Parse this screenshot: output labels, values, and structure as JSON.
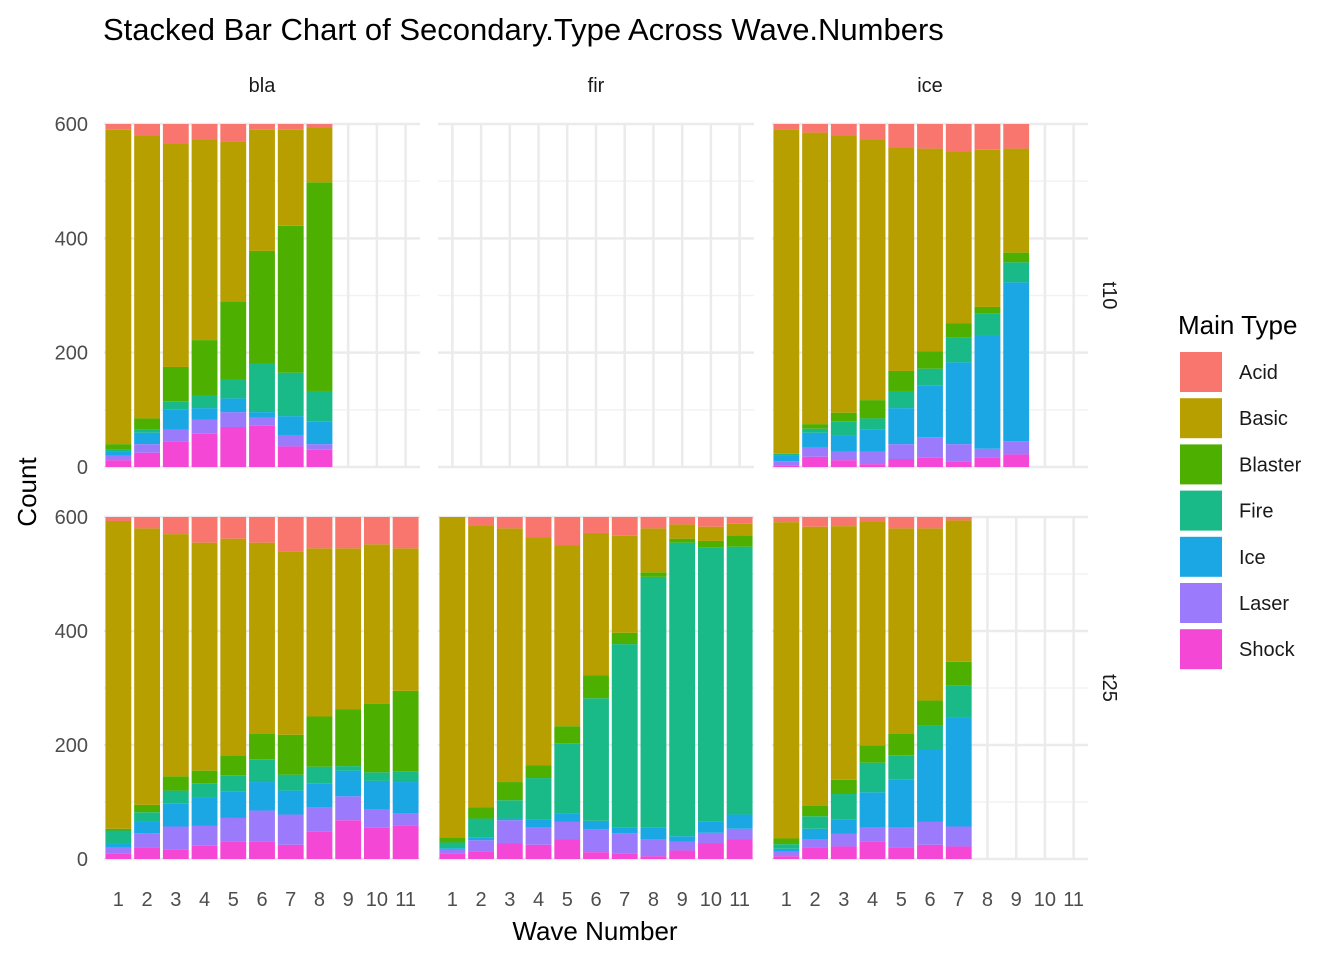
{
  "chart_data": {
    "type": "bar",
    "stacked": true,
    "title": "Stacked Bar Chart of Secondary.Type Across Wave.Numbers",
    "xlabel": "Wave Number",
    "ylabel": "Count",
    "ylim": [
      0,
      600
    ],
    "y_ticks": [
      0,
      200,
      400,
      600
    ],
    "x_ticks": [
      "1",
      "2",
      "3",
      "4",
      "5",
      "6",
      "7",
      "8",
      "9",
      "10",
      "11"
    ],
    "grid": true,
    "facet_columns": [
      "bla",
      "fir",
      "ice"
    ],
    "facet_rows": [
      "t10",
      "t25"
    ],
    "legend": {
      "title": "Main Type",
      "placement": "right",
      "entries": [
        {
          "name": "Acid",
          "color": "#F8766D"
        },
        {
          "name": "Basic",
          "color": "#B79F00"
        },
        {
          "name": "Blaster",
          "color": "#4DAF00"
        },
        {
          "name": "Fire",
          "color": "#1ABA88"
        },
        {
          "name": "Ice",
          "color": "#1AA7E3"
        },
        {
          "name": "Laser",
          "color": "#9B7BFB"
        },
        {
          "name": "Shock",
          "color": "#F447D6"
        }
      ]
    },
    "stack_order": [
      "Shock",
      "Laser",
      "Ice",
      "Fire",
      "Blaster",
      "Basic",
      "Acid"
    ],
    "panels": [
      {
        "col": "bla",
        "row": "t10",
        "bars": [
          {
            "wave": 1,
            "Shock": 12,
            "Laser": 8,
            "Ice": 7,
            "Fire": 3,
            "Blaster": 10,
            "Basic": 550,
            "Acid": 10
          },
          {
            "wave": 2,
            "Shock": 25,
            "Laser": 15,
            "Ice": 20,
            "Fire": 5,
            "Blaster": 20,
            "Basic": 495,
            "Acid": 20
          },
          {
            "wave": 3,
            "Shock": 45,
            "Laser": 20,
            "Ice": 35,
            "Fire": 15,
            "Blaster": 60,
            "Basic": 390,
            "Acid": 35
          },
          {
            "wave": 4,
            "Shock": 58,
            "Laser": 25,
            "Ice": 20,
            "Fire": 22,
            "Blaster": 97,
            "Basic": 350,
            "Acid": 28
          },
          {
            "wave": 5,
            "Shock": 70,
            "Laser": 26,
            "Ice": 24,
            "Fire": 33,
            "Blaster": 137,
            "Basic": 280,
            "Acid": 30
          },
          {
            "wave": 6,
            "Shock": 72,
            "Laser": 14,
            "Ice": 10,
            "Fire": 85,
            "Blaster": 197,
            "Basic": 212,
            "Acid": 10
          },
          {
            "wave": 7,
            "Shock": 36,
            "Laser": 20,
            "Ice": 33,
            "Fire": 76,
            "Blaster": 257,
            "Basic": 168,
            "Acid": 10
          },
          {
            "wave": 8,
            "Shock": 30,
            "Laser": 10,
            "Ice": 40,
            "Fire": 53,
            "Blaster": 365,
            "Basic": 95,
            "Acid": 7
          }
        ]
      },
      {
        "col": "fir",
        "row": "t10",
        "bars": []
      },
      {
        "col": "ice",
        "row": "t10",
        "bars": [
          {
            "wave": 1,
            "Shock": 3,
            "Laser": 7,
            "Ice": 10,
            "Fire": 3,
            "Blaster": 0,
            "Basic": 568,
            "Acid": 9
          },
          {
            "wave": 2,
            "Shock": 18,
            "Laser": 17,
            "Ice": 25,
            "Fire": 7,
            "Blaster": 8,
            "Basic": 510,
            "Acid": 15
          },
          {
            "wave": 3,
            "Shock": 12,
            "Laser": 15,
            "Ice": 28,
            "Fire": 25,
            "Blaster": 15,
            "Basic": 485,
            "Acid": 20
          },
          {
            "wave": 4,
            "Shock": 5,
            "Laser": 22,
            "Ice": 38,
            "Fire": 20,
            "Blaster": 32,
            "Basic": 455,
            "Acid": 28
          },
          {
            "wave": 5,
            "Shock": 14,
            "Laser": 26,
            "Ice": 63,
            "Fire": 30,
            "Blaster": 35,
            "Basic": 390,
            "Acid": 42
          },
          {
            "wave": 6,
            "Shock": 16,
            "Laser": 36,
            "Ice": 90,
            "Fire": 30,
            "Blaster": 30,
            "Basic": 355,
            "Acid": 43
          },
          {
            "wave": 7,
            "Shock": 10,
            "Laser": 30,
            "Ice": 143,
            "Fire": 43,
            "Blaster": 25,
            "Basic": 300,
            "Acid": 49
          },
          {
            "wave": 8,
            "Shock": 17,
            "Laser": 15,
            "Ice": 198,
            "Fire": 38,
            "Blaster": 12,
            "Basic": 275,
            "Acid": 45
          },
          {
            "wave": 9,
            "Shock": 22,
            "Laser": 23,
            "Ice": 278,
            "Fire": 35,
            "Blaster": 17,
            "Basic": 182,
            "Acid": 43
          }
        ]
      },
      {
        "col": "bla",
        "row": "t25",
        "bars": [
          {
            "wave": 1,
            "Shock": 10,
            "Laser": 10,
            "Ice": 8,
            "Fire": 22,
            "Blaster": 3,
            "Basic": 540,
            "Acid": 7
          },
          {
            "wave": 2,
            "Shock": 20,
            "Laser": 25,
            "Ice": 20,
            "Fire": 17,
            "Blaster": 13,
            "Basic": 485,
            "Acid": 20
          },
          {
            "wave": 3,
            "Shock": 17,
            "Laser": 40,
            "Ice": 40,
            "Fire": 23,
            "Blaster": 25,
            "Basic": 425,
            "Acid": 30
          },
          {
            "wave": 4,
            "Shock": 23,
            "Laser": 35,
            "Ice": 50,
            "Fire": 25,
            "Blaster": 22,
            "Basic": 400,
            "Acid": 45
          },
          {
            "wave": 5,
            "Shock": 30,
            "Laser": 42,
            "Ice": 47,
            "Fire": 28,
            "Blaster": 35,
            "Basic": 380,
            "Acid": 38
          },
          {
            "wave": 6,
            "Shock": 30,
            "Laser": 55,
            "Ice": 50,
            "Fire": 40,
            "Blaster": 45,
            "Basic": 335,
            "Acid": 45
          },
          {
            "wave": 7,
            "Shock": 25,
            "Laser": 53,
            "Ice": 42,
            "Fire": 28,
            "Blaster": 70,
            "Basic": 322,
            "Acid": 60
          },
          {
            "wave": 8,
            "Shock": 48,
            "Laser": 42,
            "Ice": 42,
            "Fire": 30,
            "Blaster": 88,
            "Basic": 295,
            "Acid": 55
          },
          {
            "wave": 9,
            "Shock": 68,
            "Laser": 42,
            "Ice": 45,
            "Fire": 8,
            "Blaster": 100,
            "Basic": 282,
            "Acid": 55
          },
          {
            "wave": 10,
            "Shock": 55,
            "Laser": 32,
            "Ice": 50,
            "Fire": 15,
            "Blaster": 120,
            "Basic": 280,
            "Acid": 48
          },
          {
            "wave": 11,
            "Shock": 58,
            "Laser": 22,
            "Ice": 55,
            "Fire": 18,
            "Blaster": 142,
            "Basic": 250,
            "Acid": 55
          }
        ]
      },
      {
        "col": "fir",
        "row": "t25",
        "bars": [
          {
            "wave": 1,
            "Shock": 10,
            "Laser": 6,
            "Ice": 3,
            "Fire": 10,
            "Blaster": 9,
            "Basic": 562,
            "Acid": 0
          },
          {
            "wave": 2,
            "Shock": 13,
            "Laser": 20,
            "Ice": 5,
            "Fire": 33,
            "Blaster": 20,
            "Basic": 494,
            "Acid": 15
          },
          {
            "wave": 3,
            "Shock": 28,
            "Laser": 40,
            "Ice": 3,
            "Fire": 32,
            "Blaster": 32,
            "Basic": 445,
            "Acid": 20
          },
          {
            "wave": 4,
            "Shock": 25,
            "Laser": 30,
            "Ice": 15,
            "Fire": 72,
            "Blaster": 22,
            "Basic": 400,
            "Acid": 36
          },
          {
            "wave": 5,
            "Shock": 35,
            "Laser": 30,
            "Ice": 15,
            "Fire": 123,
            "Blaster": 30,
            "Basic": 317,
            "Acid": 50
          },
          {
            "wave": 6,
            "Shock": 12,
            "Laser": 40,
            "Ice": 15,
            "Fire": 215,
            "Blaster": 40,
            "Basic": 250,
            "Acid": 28
          },
          {
            "wave": 7,
            "Shock": 10,
            "Laser": 35,
            "Ice": 10,
            "Fire": 322,
            "Blaster": 20,
            "Basic": 170,
            "Acid": 33
          },
          {
            "wave": 8,
            "Shock": 5,
            "Laser": 30,
            "Ice": 20,
            "Fire": 440,
            "Blaster": 8,
            "Basic": 77,
            "Acid": 20
          },
          {
            "wave": 9,
            "Shock": 15,
            "Laser": 15,
            "Ice": 10,
            "Fire": 515,
            "Blaster": 7,
            "Basic": 25,
            "Acid": 13
          },
          {
            "wave": 10,
            "Shock": 28,
            "Laser": 18,
            "Ice": 20,
            "Fire": 480,
            "Blaster": 12,
            "Basic": 25,
            "Acid": 17
          },
          {
            "wave": 11,
            "Shock": 35,
            "Laser": 18,
            "Ice": 25,
            "Fire": 470,
            "Blaster": 20,
            "Basic": 20,
            "Acid": 12
          }
        ]
      },
      {
        "col": "ice",
        "row": "t25",
        "bars": [
          {
            "wave": 1,
            "Shock": 5,
            "Laser": 8,
            "Ice": 5,
            "Fire": 8,
            "Blaster": 10,
            "Basic": 555,
            "Acid": 9
          },
          {
            "wave": 2,
            "Shock": 20,
            "Laser": 15,
            "Ice": 18,
            "Fire": 22,
            "Blaster": 18,
            "Basic": 490,
            "Acid": 17
          },
          {
            "wave": 3,
            "Shock": 22,
            "Laser": 22,
            "Ice": 25,
            "Fire": 45,
            "Blaster": 25,
            "Basic": 445,
            "Acid": 16
          },
          {
            "wave": 4,
            "Shock": 30,
            "Laser": 25,
            "Ice": 62,
            "Fire": 52,
            "Blaster": 30,
            "Basic": 393,
            "Acid": 8
          },
          {
            "wave": 5,
            "Shock": 20,
            "Laser": 35,
            "Ice": 85,
            "Fire": 42,
            "Blaster": 38,
            "Basic": 360,
            "Acid": 20
          },
          {
            "wave": 6,
            "Shock": 25,
            "Laser": 40,
            "Ice": 128,
            "Fire": 42,
            "Blaster": 43,
            "Basic": 302,
            "Acid": 20
          },
          {
            "wave": 7,
            "Shock": 22,
            "Laser": 35,
            "Ice": 192,
            "Fire": 55,
            "Blaster": 42,
            "Basic": 248,
            "Acid": 6
          }
        ]
      }
    ]
  }
}
